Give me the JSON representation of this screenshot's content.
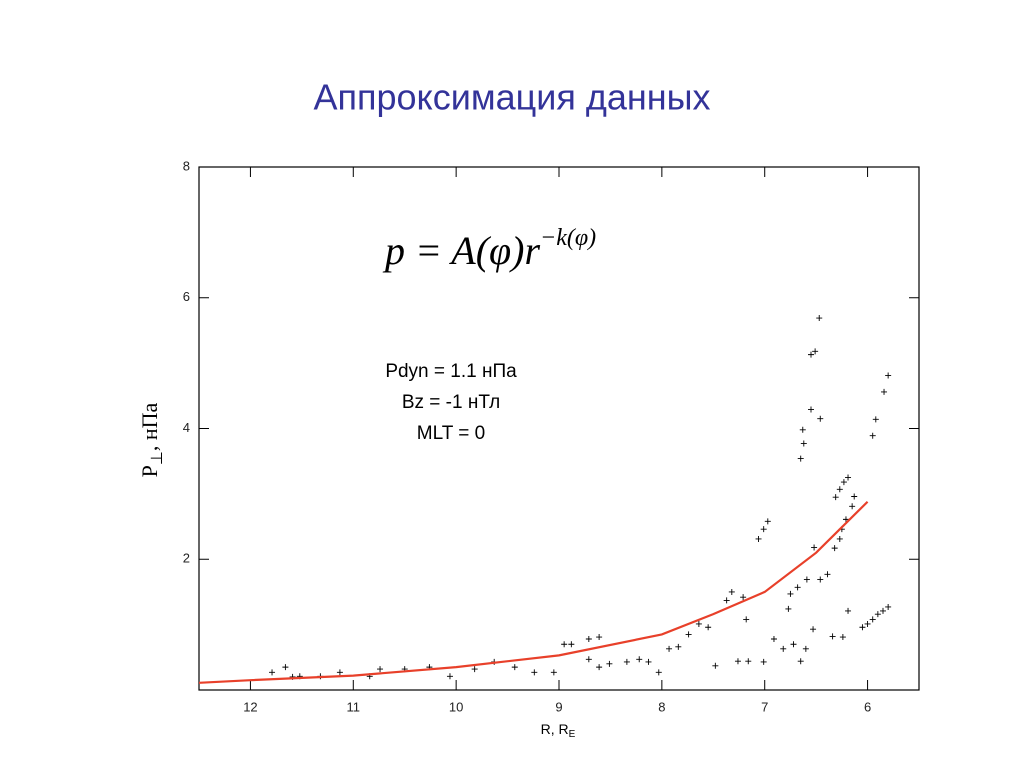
{
  "chart_data": {
    "type": "scatter",
    "title": "Аппроксимация данных",
    "formula": {
      "base": "p = A(φ)r",
      "exponent": "−k(φ)"
    },
    "annotations": [
      "Pdyn = 1.1 нПа",
      "Bz = -1 нТл",
      "MLT = 0"
    ],
    "xlabel": {
      "text": "R, R",
      "subscript": "E"
    },
    "ylabel": {
      "text": "P",
      "subscript": "⊥",
      "suffix": ", нПа"
    },
    "xlim": [
      12.5,
      5.5
    ],
    "xticks": [
      12,
      11,
      10,
      9,
      8,
      7,
      6
    ],
    "ylim": [
      0,
      8
    ],
    "yticks": [
      2,
      4,
      6,
      8
    ],
    "series": [
      {
        "kind": "scatter",
        "color": "#000000",
        "x": [
          6.47,
          6.51,
          6.55,
          6.55,
          6.46,
          6.63,
          6.62,
          6.65,
          5.8,
          5.84,
          5.92,
          5.95,
          6.19,
          6.23,
          6.27,
          6.31,
          6.13,
          6.15,
          6.21,
          6.25,
          6.27,
          6.32,
          6.52,
          6.39,
          6.46,
          6.59,
          6.68,
          6.75,
          6.77,
          7.06,
          7.01,
          6.97,
          7.21,
          7.32,
          7.37,
          5.8,
          5.85,
          5.9,
          5.95,
          6.0,
          6.05,
          6.19,
          6.24,
          6.34,
          6.53,
          6.6,
          6.65,
          6.72,
          6.82,
          6.91,
          7.01,
          7.16,
          7.26,
          7.18,
          7.48,
          7.55,
          7.64,
          7.74,
          7.84,
          7.93,
          8.03,
          8.13,
          8.22,
          8.34,
          8.51,
          8.61,
          8.71,
          8.61,
          8.71,
          8.88,
          8.95,
          9.05,
          9.24,
          9.43,
          9.63,
          9.82,
          10.06,
          10.26,
          10.5,
          10.74,
          10.84,
          11.13,
          11.32,
          11.52,
          11.59,
          11.66,
          11.79
        ],
        "values": [
          5.69,
          5.18,
          5.13,
          4.29,
          4.15,
          3.98,
          3.77,
          3.54,
          4.81,
          4.56,
          4.14,
          3.89,
          3.25,
          3.18,
          3.07,
          2.95,
          2.96,
          2.81,
          2.61,
          2.46,
          2.31,
          2.17,
          2.18,
          1.77,
          1.69,
          1.69,
          1.57,
          1.47,
          1.24,
          2.31,
          2.46,
          2.58,
          1.42,
          1.5,
          1.37,
          1.27,
          1.21,
          1.16,
          1.08,
          1.01,
          0.96,
          1.21,
          0.81,
          0.82,
          0.93,
          0.63,
          0.44,
          0.7,
          0.63,
          0.78,
          0.43,
          0.44,
          0.44,
          1.08,
          0.37,
          0.96,
          1.01,
          0.85,
          0.66,
          0.63,
          0.27,
          0.43,
          0.47,
          0.43,
          0.4,
          0.35,
          0.47,
          0.81,
          0.78,
          0.7,
          0.7,
          0.27,
          0.27,
          0.35,
          0.43,
          0.32,
          0.21,
          0.35,
          0.32,
          0.32,
          0.21,
          0.27,
          0.21,
          0.21,
          0.2,
          0.35,
          0.27
        ]
      },
      {
        "kind": "line",
        "color": "#e8402a",
        "x": [
          12.5,
          12,
          11,
          10,
          9,
          8,
          7.5,
          7,
          6.5,
          6
        ],
        "values": [
          0.11,
          0.15,
          0.22,
          0.35,
          0.53,
          0.85,
          1.16,
          1.5,
          2.1,
          2.88
        ]
      }
    ]
  }
}
